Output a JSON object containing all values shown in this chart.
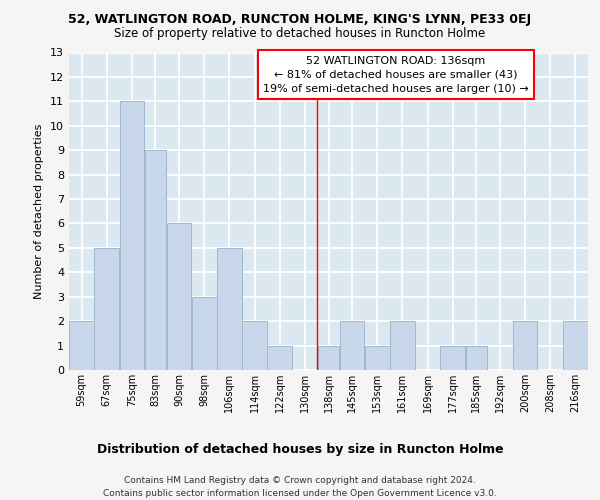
{
  "title": "52, WATLINGTON ROAD, RUNCTON HOLME, KING'S LYNN, PE33 0EJ",
  "subtitle": "Size of property relative to detached houses in Runcton Holme",
  "xlabel": "Distribution of detached houses by size in Runcton Holme",
  "ylabel": "Number of detached properties",
  "bins": [
    "59sqm",
    "67sqm",
    "75sqm",
    "83sqm",
    "90sqm",
    "98sqm",
    "106sqm",
    "114sqm",
    "122sqm",
    "130sqm",
    "138sqm",
    "145sqm",
    "153sqm",
    "161sqm",
    "169sqm",
    "177sqm",
    "185sqm",
    "192sqm",
    "200sqm",
    "208sqm",
    "216sqm"
  ],
  "values": [
    2,
    5,
    11,
    9,
    6,
    3,
    5,
    2,
    1,
    0,
    1,
    2,
    1,
    2,
    0,
    1,
    1,
    0,
    2,
    0,
    2
  ],
  "bar_color": "#c8d8ea",
  "bar_edge_color": "#a0b8d0",
  "bins_numeric": [
    59,
    67,
    75,
    83,
    90,
    98,
    106,
    114,
    122,
    130,
    138,
    145,
    153,
    161,
    169,
    177,
    185,
    192,
    200,
    208,
    216
  ],
  "annotation_title": "52 WATLINGTON ROAD: 136sqm",
  "annotation_line1": "← 81% of detached houses are smaller (43)",
  "annotation_line2": "19% of semi-detached houses are larger (10) →",
  "ylim": [
    0,
    13
  ],
  "yticks": [
    0,
    1,
    2,
    3,
    4,
    5,
    6,
    7,
    8,
    9,
    10,
    11,
    12,
    13
  ],
  "footer1": "Contains HM Land Registry data © Crown copyright and database right 2024.",
  "footer2": "Contains public sector information licensed under the Open Government Licence v3.0.",
  "bg_color": "#dce8f0",
  "grid_color": "#ffffff",
  "fig_bg": "#f5f5f5"
}
